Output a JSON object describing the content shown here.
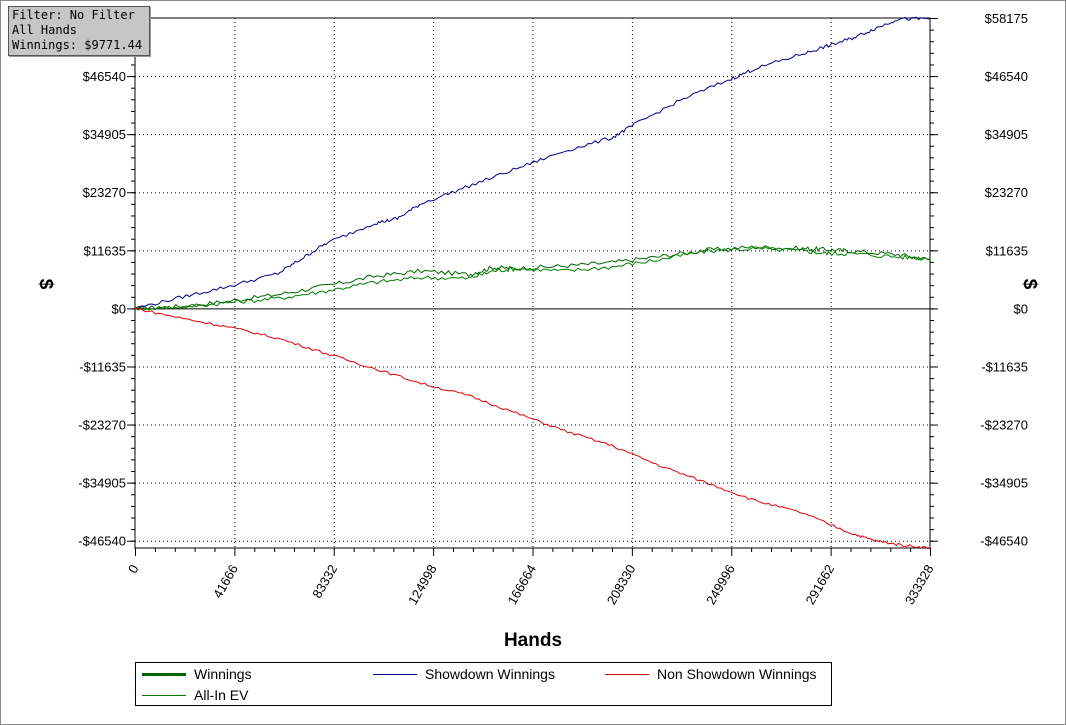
{
  "info_box": {
    "filter": "Filter: No Filter",
    "hands": "All Hands",
    "winnings": "Winnings: $9771.44"
  },
  "chart_data": {
    "type": "line",
    "title": "",
    "xlabel": "Hands",
    "ylabel": "$",
    "xlim": [
      0,
      333328
    ],
    "ylim": [
      -48000,
      58175
    ],
    "x_ticks": [
      0,
      41666,
      83332,
      124998,
      166664,
      208330,
      249996,
      291662,
      333328
    ],
    "y_ticks": [
      {
        "value": 58175,
        "label": "$58175"
      },
      {
        "value": 46540,
        "label": "$46540"
      },
      {
        "value": 34905,
        "label": "$34905"
      },
      {
        "value": 23270,
        "label": "$23270"
      },
      {
        "value": 11635,
        "label": "$11635"
      },
      {
        "value": 0,
        "label": "$0"
      },
      {
        "value": -11635,
        "label": "-$11635"
      },
      {
        "value": -23270,
        "label": "-$23270"
      },
      {
        "value": -34905,
        "label": "-$34905"
      },
      {
        "value": -46540,
        "label": "-$46540"
      }
    ],
    "grid": true,
    "legend_position": "bottom",
    "series": [
      {
        "name": "Winnings",
        "color": "#006400",
        "x": [
          0,
          20000,
          40000,
          60000,
          80000,
          100000,
          120000,
          140000,
          150000,
          160000,
          180000,
          200000,
          220000,
          240000,
          260000,
          280000,
          290000,
          300000,
          320000,
          333328
        ],
        "y": [
          0,
          400,
          1500,
          2800,
          4500,
          6400,
          7500,
          6800,
          8200,
          8000,
          8500,
          9200,
          10400,
          11700,
          12300,
          12000,
          11800,
          11500,
          10800,
          9771
        ]
      },
      {
        "name": "All-In EV",
        "color": "#008000",
        "x": [
          0,
          20000,
          40000,
          60000,
          80000,
          100000,
          120000,
          140000,
          150000,
          160000,
          180000,
          200000,
          220000,
          240000,
          260000,
          280000,
          290000,
          300000,
          320000,
          333328
        ],
        "y": [
          0,
          300,
          1200,
          2000,
          3500,
          5200,
          6200,
          6000,
          7500,
          8000,
          7500,
          8300,
          9800,
          11500,
          12000,
          11500,
          11000,
          11000,
          10300,
          10000
        ]
      },
      {
        "name": "Showdown Winnings",
        "color": "#00008b",
        "x": [
          0,
          20000,
          40000,
          60000,
          70000,
          80000,
          100000,
          110000,
          120000,
          140000,
          160000,
          180000,
          200000,
          210000,
          230000,
          250000,
          260000,
          280000,
          290000,
          300000,
          310000,
          320000,
          333328
        ],
        "y": [
          0,
          2300,
          4500,
          7000,
          10000,
          13000,
          17000,
          18000,
          21000,
          24500,
          28000,
          31500,
          34200,
          37000,
          42000,
          46000,
          48000,
          51000,
          52500,
          54000,
          56000,
          58000,
          58000
        ]
      },
      {
        "name": "Non Showdown Winnings",
        "color": "#e00000",
        "x": [
          0,
          20000,
          40000,
          60000,
          80000,
          100000,
          120000,
          140000,
          160000,
          180000,
          200000,
          220000,
          240000,
          260000,
          280000,
          300000,
          310000,
          320000,
          333328
        ],
        "y": [
          0,
          -2000,
          -3800,
          -6000,
          -9000,
          -12000,
          -15000,
          -17500,
          -21000,
          -24500,
          -27500,
          -31500,
          -35000,
          -38500,
          -41000,
          -45000,
          -46500,
          -47300,
          -48000
        ]
      }
    ]
  },
  "legend": {
    "items": [
      {
        "label": "Winnings",
        "color": "#006400",
        "width": 3
      },
      {
        "label": "Showdown Winnings",
        "color": "#00008b",
        "width": 1
      },
      {
        "label": "Non Showdown Winnings",
        "color": "#e00000",
        "width": 1
      },
      {
        "label": "All-In EV",
        "color": "#008000",
        "width": 1
      }
    ]
  }
}
